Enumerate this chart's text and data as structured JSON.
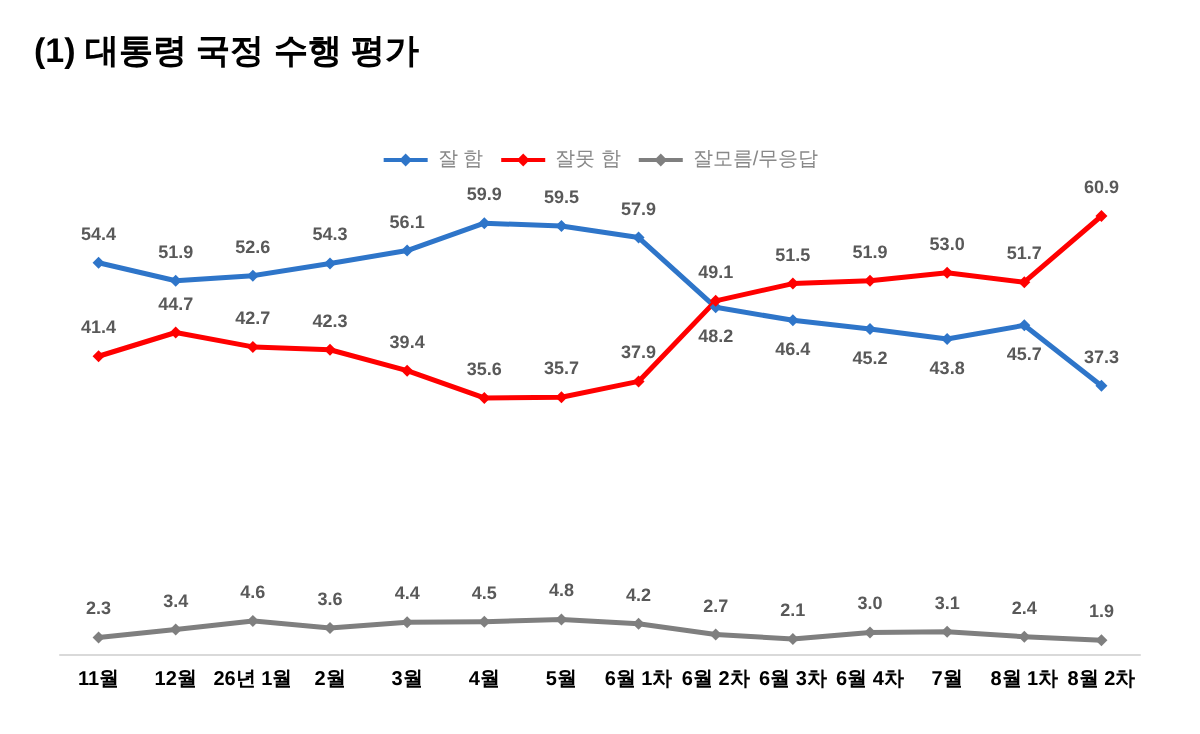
{
  "chart_data": {
    "type": "line",
    "title": "(1) 대통령 국정 수행 평가",
    "categories": [
      "11월",
      "12월",
      "26년 1월",
      "2월",
      "3월",
      "4월",
      "5월",
      "6월 1차",
      "6월 2차",
      "6월 3차",
      "6월 4차",
      "7월",
      "8월 1차",
      "8월 2차"
    ],
    "series": [
      {
        "name": "잘 함",
        "color": "#2e75c9",
        "values": [
          54.4,
          51.9,
          52.6,
          54.3,
          56.1,
          59.9,
          59.5,
          57.9,
          48.2,
          46.4,
          45.2,
          43.8,
          45.7,
          37.3
        ],
        "value_labels": [
          "54.4",
          "51.9",
          "52.6",
          "54.3",
          "56.1",
          "59.9",
          "59.5",
          "57.9",
          "48.2",
          "46.4",
          "45.2",
          "43.8",
          "45.7",
          "37.3"
        ]
      },
      {
        "name": "잘못 함",
        "color": "#ff0000",
        "values": [
          41.4,
          44.7,
          42.7,
          42.3,
          39.4,
          35.6,
          35.7,
          37.9,
          49.1,
          51.5,
          51.9,
          53.0,
          51.7,
          60.9
        ],
        "value_labels": [
          "41.4",
          "44.7",
          "42.7",
          "42.3",
          "39.4",
          "35.6",
          "35.7",
          "37.9",
          "49.1",
          "51.5",
          "51.9",
          "53.0",
          "51.7",
          "60.9"
        ]
      },
      {
        "name": "잘모름/무응답",
        "color": "#7f7f7f",
        "values": [
          2.3,
          3.4,
          4.6,
          3.6,
          4.4,
          4.5,
          4.8,
          4.2,
          2.7,
          2.1,
          3.0,
          3.1,
          2.4,
          1.9
        ],
        "value_labels": [
          "2.3",
          "3.4",
          "4.6",
          "3.6",
          "4.4",
          "4.5",
          "4.8",
          "4.2",
          "2.7",
          "2.1",
          "3.0",
          "3.1",
          "2.4",
          "1.9"
        ]
      }
    ],
    "legend": "top",
    "marker": "diamond",
    "line_style": "solid"
  }
}
